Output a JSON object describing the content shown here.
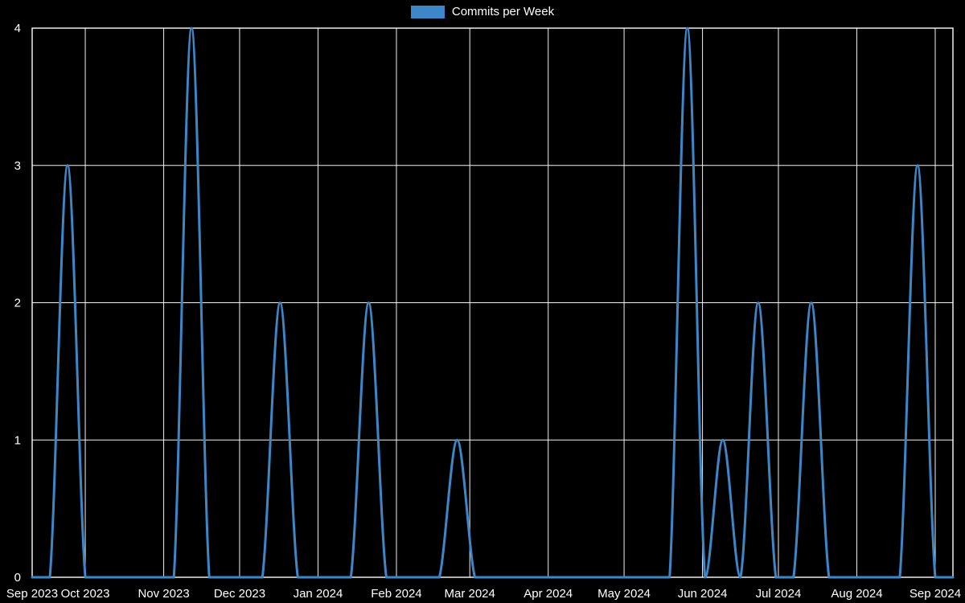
{
  "legend": {
    "position": "top"
  },
  "chart_data": {
    "type": "line",
    "title": "Commits per Week",
    "series_name": "Commits per Week",
    "xlabel": "",
    "ylabel": "",
    "ylim": [
      0,
      4
    ],
    "yticks": [
      0,
      1,
      2,
      3,
      4
    ],
    "grid": true,
    "legend_position": "top",
    "line_color": "#3d87c8",
    "grid_color": "#ffffff",
    "text_color": "#ffffff",
    "background_color": "#000000",
    "xticks": [
      {
        "date": "2023-09-10",
        "label": "Sep 2023"
      },
      {
        "date": "2023-10-01",
        "label": "Oct 2023"
      },
      {
        "date": "2023-11-01",
        "label": "Nov 2023"
      },
      {
        "date": "2023-12-01",
        "label": "Dec 2023"
      },
      {
        "date": "2024-01-01",
        "label": "Jan 2024"
      },
      {
        "date": "2024-02-01",
        "label": "Feb 2024"
      },
      {
        "date": "2024-03-01",
        "label": "Mar 2024"
      },
      {
        "date": "2024-04-01",
        "label": "Apr 2024"
      },
      {
        "date": "2024-05-01",
        "label": "May 2024"
      },
      {
        "date": "2024-06-01",
        "label": "Jun 2024"
      },
      {
        "date": "2024-07-01",
        "label": "Jul 2024"
      },
      {
        "date": "2024-08-01",
        "label": "Aug 2024"
      },
      {
        "date": "2024-09-01",
        "label": "Sep 2024"
      }
    ],
    "x": [
      "2023-09-10",
      "2023-09-17",
      "2023-09-24",
      "2023-10-01",
      "2023-10-08",
      "2023-10-15",
      "2023-10-22",
      "2023-10-29",
      "2023-11-05",
      "2023-11-12",
      "2023-11-19",
      "2023-11-26",
      "2023-12-03",
      "2023-12-10",
      "2023-12-17",
      "2023-12-24",
      "2023-12-31",
      "2024-01-07",
      "2024-01-14",
      "2024-01-21",
      "2024-01-28",
      "2024-02-04",
      "2024-02-11",
      "2024-02-18",
      "2024-02-25",
      "2024-03-03",
      "2024-03-10",
      "2024-03-17",
      "2024-03-24",
      "2024-03-31",
      "2024-04-07",
      "2024-04-14",
      "2024-04-21",
      "2024-04-28",
      "2024-05-05",
      "2024-05-12",
      "2024-05-19",
      "2024-05-26",
      "2024-06-02",
      "2024-06-09",
      "2024-06-16",
      "2024-06-23",
      "2024-06-30",
      "2024-07-07",
      "2024-07-14",
      "2024-07-21",
      "2024-07-28",
      "2024-08-04",
      "2024-08-11",
      "2024-08-18",
      "2024-08-25",
      "2024-09-01",
      "2024-09-08"
    ],
    "values": [
      0,
      0,
      3,
      0,
      0,
      0,
      0,
      0,
      0,
      4,
      0,
      0,
      0,
      0,
      2,
      0,
      0,
      0,
      0,
      2,
      0,
      0,
      0,
      0,
      1,
      0,
      0,
      0,
      0,
      0,
      0,
      0,
      0,
      0,
      0,
      0,
      0,
      4,
      0,
      1,
      0,
      2,
      0,
      0,
      2,
      0,
      0,
      0,
      0,
      0,
      3,
      0,
      0
    ]
  }
}
